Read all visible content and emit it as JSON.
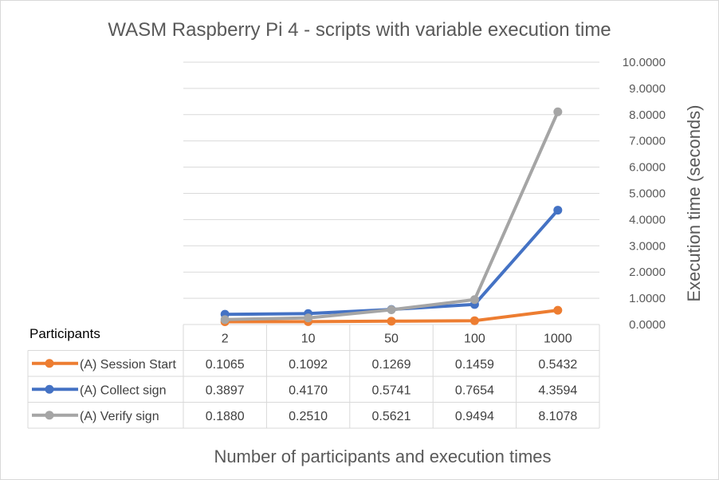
{
  "chart_data": {
    "type": "line",
    "title": "WASM Raspberry Pi 4 - scripts with variable execution time",
    "xlabel": "Number of participants and execution times",
    "ylabel": "Execution time (seconds)",
    "ylim": [
      0,
      10
    ],
    "y_ticks": [
      "0.0000",
      "1.0000",
      "2.0000",
      "3.0000",
      "4.0000",
      "5.0000",
      "6.0000",
      "7.0000",
      "8.0000",
      "9.0000",
      "10.0000"
    ],
    "y_axis_side": "right",
    "grid": true,
    "legend_placement": "data-table",
    "table_header_label": "Participants",
    "categories": [
      "2",
      "10",
      "50",
      "100",
      "1000"
    ],
    "series": [
      {
        "name": "(A) Session Start",
        "color": "#ed7d31",
        "values": [
          0.1065,
          0.1092,
          0.1269,
          0.1459,
          0.5432
        ],
        "labels": [
          "0.1065",
          "0.1092",
          "0.1269",
          "0.1459",
          "0.5432"
        ]
      },
      {
        "name": "(A) Collect sign",
        "color": "#4472c4",
        "values": [
          0.3897,
          0.417,
          0.5741,
          0.7654,
          4.3594
        ],
        "labels": [
          "0.3897",
          "0.4170",
          "0.5741",
          "0.7654",
          "4.3594"
        ]
      },
      {
        "name": "(A) Verify sign",
        "color": "#a5a5a5",
        "values": [
          0.188,
          0.251,
          0.5621,
          0.9494,
          8.1078
        ],
        "labels": [
          "0.1880",
          "0.2510",
          "0.5621",
          "0.9494",
          "8.1078"
        ]
      }
    ]
  }
}
